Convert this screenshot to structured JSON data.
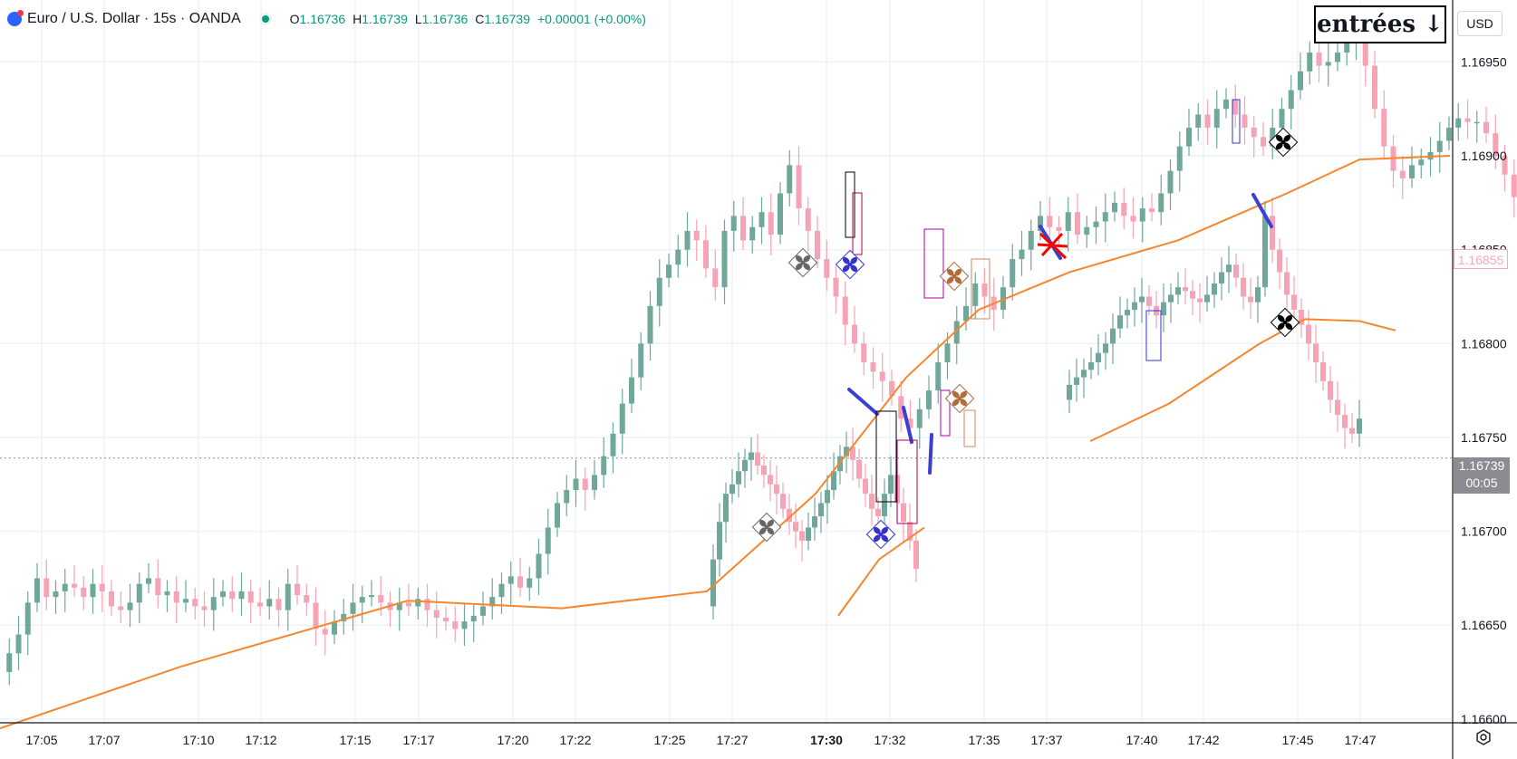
{
  "header": {
    "symbol": "Euro / U.S. Dollar · 15s · OANDA",
    "ohlc": [
      {
        "key": "O",
        "value": "1.16736"
      },
      {
        "key": "H",
        "value": "1.16739"
      },
      {
        "key": "L",
        "value": "1.16736"
      },
      {
        "key": "C",
        "value": "1.16739"
      }
    ],
    "change": "+0.00001 (+0.00%)"
  },
  "entries_label": "entrées ↓",
  "currency": "USD",
  "last_price": {
    "value": "1.16739",
    "countdown": "00:05"
  },
  "ma_tag": "1.16855",
  "icons": {
    "symbol": "flag-icon",
    "status": "market-open-icon",
    "settings": "gear-icon"
  },
  "colors": {
    "up": "#6fa89a",
    "down": "#f5a3b5",
    "ma": "#f5862d",
    "grid": "#eef1f5",
    "blue_line": "#3a3fd0",
    "cross": "#ff0000"
  },
  "chart_data": {
    "type": "candlestick",
    "x_ticks": [
      "17:05",
      "17:07",
      "17:10",
      "17:12",
      "17:15",
      "17:17",
      "17:20",
      "17:22",
      "17:25",
      "17:27",
      "17:30",
      "17:32",
      "17:35",
      "17:37",
      "17:40",
      "17:42",
      "17:45",
      "17:47"
    ],
    "y_ticks": [
      "1.16950",
      "1.16900",
      "1.16850",
      "1.16800",
      "1.16750",
      "1.16700",
      "1.16650",
      "1.16600"
    ],
    "ylim": [
      1.16598,
      1.16983
    ],
    "series": [
      {
        "name": "",
        "kind": "close_path",
        "values": [
          1.16625,
          1.16635,
          1.16645,
          1.16662,
          1.16675,
          1.16665,
          1.16668,
          1.16672,
          1.1667,
          1.16665,
          1.16672,
          1.16668,
          1.1666,
          1.16658,
          1.16662,
          1.16672,
          1.16675,
          1.16666,
          1.16668,
          1.16662,
          1.16664,
          1.1666,
          1.16658,
          1.16665,
          1.16668,
          1.16664,
          1.16668,
          1.16662,
          1.1666,
          1.16664,
          1.16658,
          1.16672,
          1.16666,
          1.16662,
          1.16648,
          1.16645,
          1.16652,
          1.16656,
          1.16662,
          1.16665,
          1.16666,
          1.16662,
          1.16658,
          1.16662,
          1.1666,
          1.16664,
          1.16658,
          1.16654,
          1.16652,
          1.16648,
          1.16652,
          1.16655,
          1.1666,
          1.16665,
          1.16672,
          1.16676,
          1.1667,
          1.16675,
          1.16688,
          1.16702,
          1.16715,
          1.16722,
          1.16728,
          1.16722,
          1.1673,
          1.1674,
          1.16752,
          1.16768,
          1.16782,
          1.168,
          1.1682,
          1.16835,
          1.16842,
          1.1685,
          1.1686,
          1.16855,
          1.1684,
          1.1683,
          1.1686,
          1.16868,
          1.16855,
          1.16862,
          1.1687,
          1.16858,
          1.1688,
          1.16895,
          1.16872,
          1.1686,
          1.16845,
          1.16835,
          1.16825,
          1.1681,
          1.168,
          1.1679,
          1.16785,
          1.1678,
          1.16772,
          1.1676,
          1.16755,
          1.16765,
          1.16775,
          1.1679,
          1.168,
          1.16812,
          1.1682,
          1.16832,
          1.16825,
          1.16818,
          1.1683,
          1.16845,
          1.1685,
          1.1686,
          1.16868,
          1.16862,
          1.1686,
          1.1687,
          1.16858,
          1.16862,
          1.16865,
          1.1687,
          1.16875,
          1.16868,
          1.16865,
          1.16872,
          1.1687,
          1.1688,
          1.16892,
          1.16905,
          1.16915,
          1.16922,
          1.16915,
          1.16925,
          1.1693,
          1.16922,
          1.16915,
          1.1691,
          1.16905,
          1.16915,
          1.16925,
          1.16935,
          1.16945,
          1.16955,
          1.16948,
          1.1695,
          1.16955,
          1.1696,
          1.16965,
          1.16948,
          1.16925,
          1.16905,
          1.16892,
          1.16888,
          1.16895,
          1.16898,
          1.16902,
          1.16908,
          1.16915,
          1.1692,
          1.16918,
          1.16918,
          1.16912,
          1.169,
          1.1689,
          1.16878,
          1.16865,
          1.16855
        ]
      },
      {
        "name": "",
        "kind": "close_path",
        "values": [
          1.1666,
          1.16685,
          1.16705,
          1.1672,
          1.16725,
          1.16732,
          1.16738,
          1.16742,
          1.16735,
          1.1673,
          1.16725,
          1.1672,
          1.16712,
          1.16705,
          1.167,
          1.16695,
          1.16702,
          1.16708,
          1.16715,
          1.16722,
          1.16732,
          1.1674,
          1.16745,
          1.16738,
          1.16728,
          1.1672,
          1.16712,
          1.16708,
          1.1672,
          1.1673,
          1.16715,
          1.16705,
          1.16695,
          1.1668
        ]
      },
      {
        "name": "",
        "kind": "close_path",
        "values": [
          1.1677,
          1.16778,
          1.16782,
          1.16786,
          1.1679,
          1.16795,
          1.168,
          1.16808,
          1.16815,
          1.16818,
          1.16822,
          1.16825,
          1.1682,
          1.16815,
          1.16822,
          1.16826,
          1.1683,
          1.16828,
          1.16824,
          1.16822,
          1.16826,
          1.16832,
          1.16838,
          1.16842,
          1.16835,
          1.16825,
          1.16822,
          1.1683,
          1.16868,
          1.1685,
          1.16838,
          1.16826,
          1.16818,
          1.1681,
          1.168,
          1.1679,
          1.1678,
          1.1677,
          1.16762,
          1.16755,
          1.16752,
          1.1676
        ]
      },
      {
        "name": "",
        "kind": "moving_average",
        "x": [
          0,
          200,
          450,
          620,
          780,
          900,
          1000,
          1080,
          1180,
          1300,
          1420,
          1500,
          1600
        ],
        "values": [
          1.16595,
          1.16628,
          1.16663,
          1.16659,
          1.16668,
          1.1672,
          1.16782,
          1.16818,
          1.16838,
          1.16855,
          1.1688,
          1.16898,
          1.169
        ]
      },
      {
        "name": "",
        "kind": "moving_average",
        "x": [
          925,
          970,
          1020
        ],
        "values": [
          1.16655,
          1.16685,
          1.16702
        ]
      },
      {
        "name": "",
        "kind": "moving_average",
        "x": [
          1203,
          1290,
          1390,
          1440,
          1500,
          1540
        ],
        "values": [
          1.16748,
          1.16768,
          1.168,
          1.16813,
          1.16812,
          1.16807
        ]
      }
    ],
    "grid": true
  }
}
